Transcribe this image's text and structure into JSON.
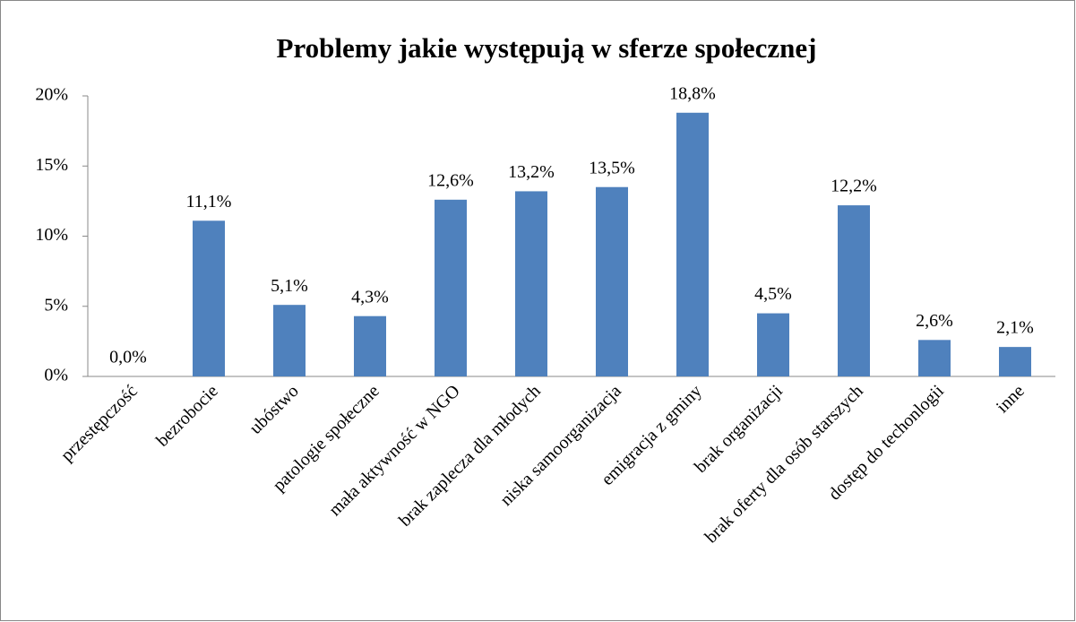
{
  "chart_data": {
    "type": "bar",
    "title": "Problemy jakie występują w sferze społecznej",
    "categories": [
      "przestępczość",
      "bezrobocie",
      "ubóstwo",
      "patologie społeczne",
      "mała aktywność w NGO",
      "brak zaplecza dla młodych",
      "niska samoorganizacja",
      "emigracja z gminy",
      "brak organizacji",
      "brak oferty dla osób starszych",
      "dostęp do techonlogii",
      "inne"
    ],
    "values": [
      0.0,
      11.1,
      5.1,
      4.3,
      12.6,
      13.2,
      13.5,
      18.8,
      4.5,
      12.2,
      2.6,
      2.1
    ],
    "value_labels": [
      "0,0%",
      "11,1%",
      "5,1%",
      "4,3%",
      "12,6%",
      "13,2%",
      "13,5%",
      "18,8%",
      "4,5%",
      "12,2%",
      "2,6%",
      "2,1%"
    ],
    "color": "#4f81bd",
    "ylim": [
      0,
      20
    ],
    "yticks": [
      {
        "value": 0,
        "label": "0%"
      },
      {
        "value": 5,
        "label": "5%"
      },
      {
        "value": 10,
        "label": "10%"
      },
      {
        "value": 15,
        "label": "15%"
      },
      {
        "value": 20,
        "label": "20%"
      }
    ],
    "grid": false
  }
}
